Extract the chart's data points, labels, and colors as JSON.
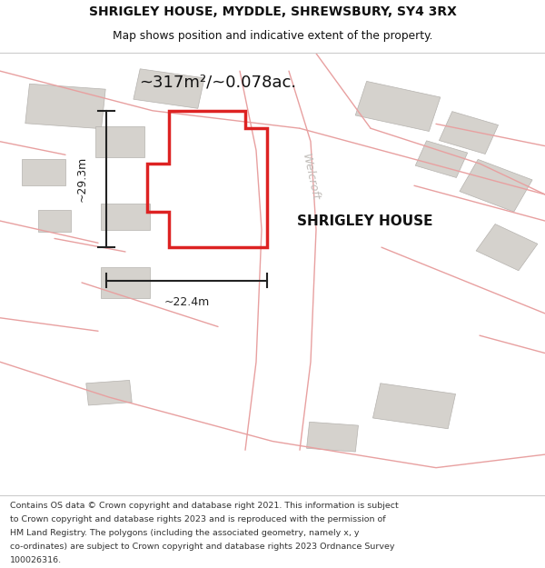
{
  "title_line1": "SHRIGLEY HOUSE, MYDDLE, SHREWSBURY, SY4 3RX",
  "title_line2": "Map shows position and indicative extent of the property.",
  "area_label": "~317m²/~0.078ac.",
  "property_label": "SHRIGLEY HOUSE",
  "dim_width": "~22.4m",
  "dim_height": "~29.3m",
  "street_label": "Welcroft",
  "footer_lines": [
    "Contains OS data © Crown copyright and database right 2021. This information is subject",
    "to Crown copyright and database rights 2023 and is reproduced with the permission of",
    "HM Land Registry. The polygons (including the associated geometry, namely x, y",
    "co-ordinates) are subject to Crown copyright and database rights 2023 Ordnance Survey",
    "100026316."
  ],
  "map_bg": "#f0eeeb",
  "red_color": "#dd2222",
  "light_red": "#e8a0a0",
  "dark_color": "#111111",
  "building_color": "#d5d2cd",
  "building_edge": "#b5b2ae",
  "dim_color": "#222222",
  "street_color": "#c0bcb8"
}
